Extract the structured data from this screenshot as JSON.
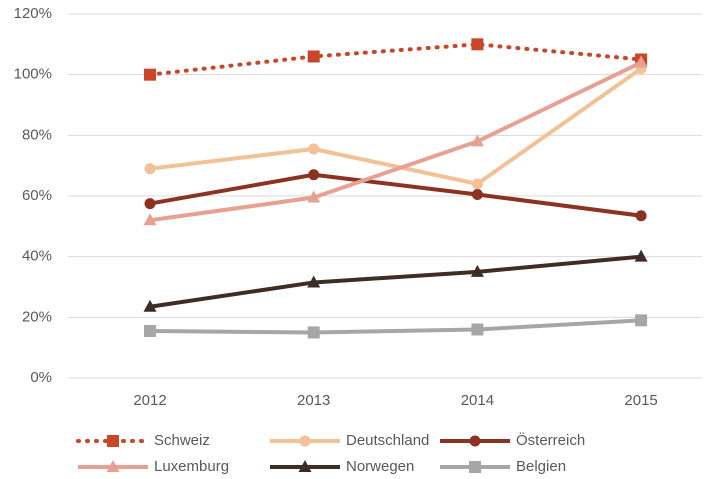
{
  "chart_data": {
    "type": "line",
    "categories": [
      "2012",
      "2013",
      "2014",
      "2015"
    ],
    "series": [
      {
        "name": "Schweiz",
        "color": "#c8472a",
        "dash": "dotted",
        "marker": "square",
        "values": [
          100,
          106,
          110,
          105
        ]
      },
      {
        "name": "Deutschland",
        "color": "#f2c196",
        "dash": "solid",
        "marker": "circle",
        "values": [
          69,
          75.5,
          64,
          102
        ]
      },
      {
        "name": "Österreich",
        "color": "#8b3222",
        "dash": "solid",
        "marker": "circle",
        "values": [
          57.5,
          67,
          60.5,
          53.5
        ]
      },
      {
        "name": "Luxemburg",
        "color": "#e6a193",
        "dash": "solid",
        "marker": "triangle",
        "values": [
          52,
          59.5,
          78,
          104
        ]
      },
      {
        "name": "Norwegen",
        "color": "#3f2c26",
        "dash": "solid",
        "marker": "triangle",
        "values": [
          23.5,
          31.5,
          35,
          40
        ]
      },
      {
        "name": "Belgien",
        "color": "#a6a6a6",
        "dash": "solid",
        "marker": "square",
        "values": [
          15.5,
          15,
          16,
          19
        ]
      }
    ],
    "ylim": [
      0,
      120
    ],
    "yticks": [
      {
        "value": 0,
        "label": "0%"
      },
      {
        "value": 20,
        "label": "20%"
      },
      {
        "value": 40,
        "label": "40%"
      },
      {
        "value": 60,
        "label": "60%"
      },
      {
        "value": 80,
        "label": "80%"
      },
      {
        "value": 100,
        "label": "100%"
      },
      {
        "value": 120,
        "label": "120%"
      }
    ],
    "grid": true,
    "legend": "bottom"
  }
}
